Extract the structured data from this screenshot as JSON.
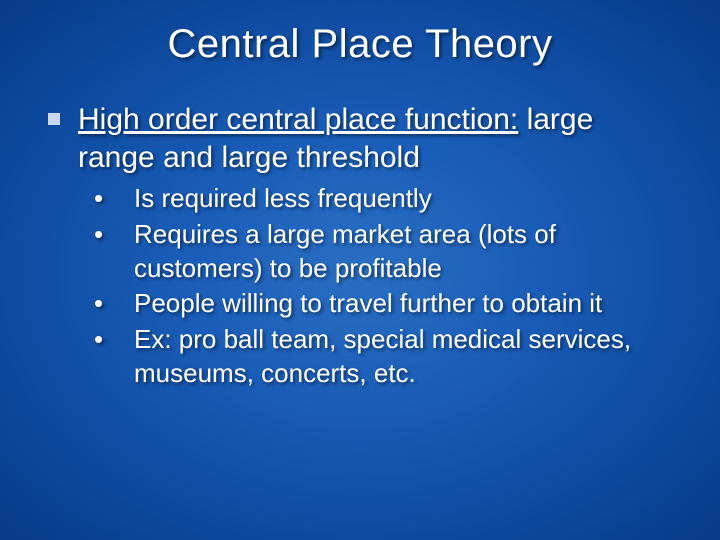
{
  "slide": {
    "title": "Central Place Theory",
    "background_gradient": [
      "#2a6fc4",
      "#1a5db8",
      "#0d4ba0",
      "#083a85"
    ],
    "title_fontsize": 40,
    "level1_fontsize": 30,
    "level2_fontsize": 26,
    "text_color": "#ffffff",
    "bullet_square_color": "#c9d8ef",
    "level1": {
      "underlined": "High order central place function:",
      "rest": " large range and large threshold"
    },
    "level2": [
      "Is required less frequently",
      "Requires a large market area (lots of customers) to be profitable",
      "People willing to travel further to obtain it",
      "Ex: pro ball team, special medical services, museums, concerts, etc."
    ]
  }
}
